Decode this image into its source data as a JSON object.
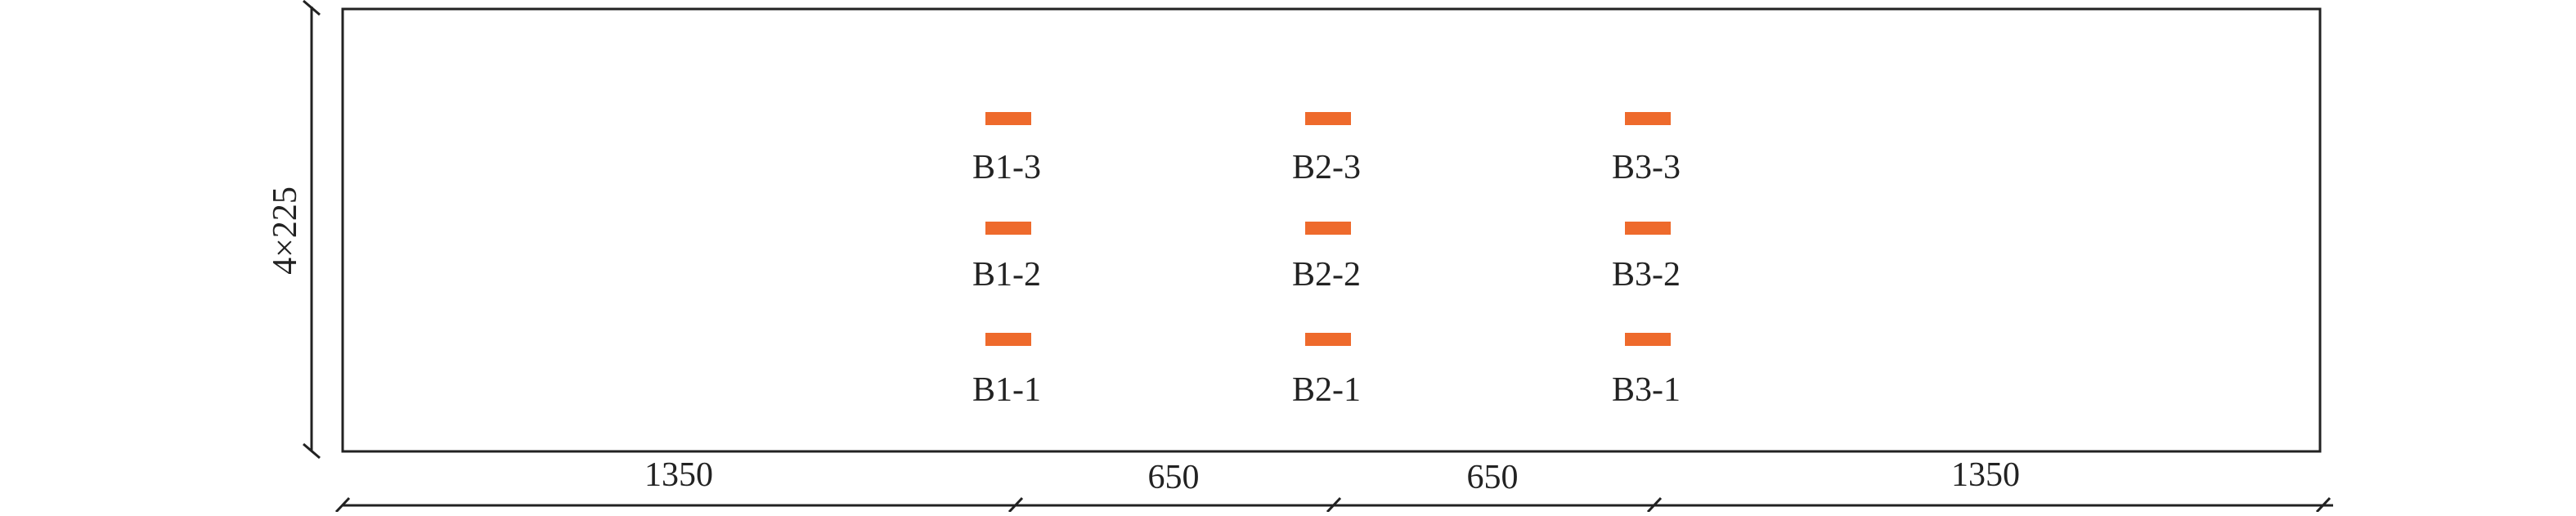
{
  "diagram": {
    "colors": {
      "line": "#222222",
      "gauge": "#ee6a2c",
      "background": "#ffffff"
    },
    "vertical_dimension": {
      "label": "4×225"
    },
    "horizontal_dimensions": [
      {
        "label": "1350"
      },
      {
        "label": "650"
      },
      {
        "label": "650"
      },
      {
        "label": "1350"
      }
    ],
    "gauges": [
      {
        "id": "B1-3",
        "label": "B1-3"
      },
      {
        "id": "B1-2",
        "label": "B1-2"
      },
      {
        "id": "B1-1",
        "label": "B1-1"
      },
      {
        "id": "B2-3",
        "label": "B2-3"
      },
      {
        "id": "B2-2",
        "label": "B2-2"
      },
      {
        "id": "B2-1",
        "label": "B2-1"
      },
      {
        "id": "B3-3",
        "label": "B3-3"
      },
      {
        "id": "B3-2",
        "label": "B3-2"
      },
      {
        "id": "B3-1",
        "label": "B3-1"
      }
    ]
  }
}
